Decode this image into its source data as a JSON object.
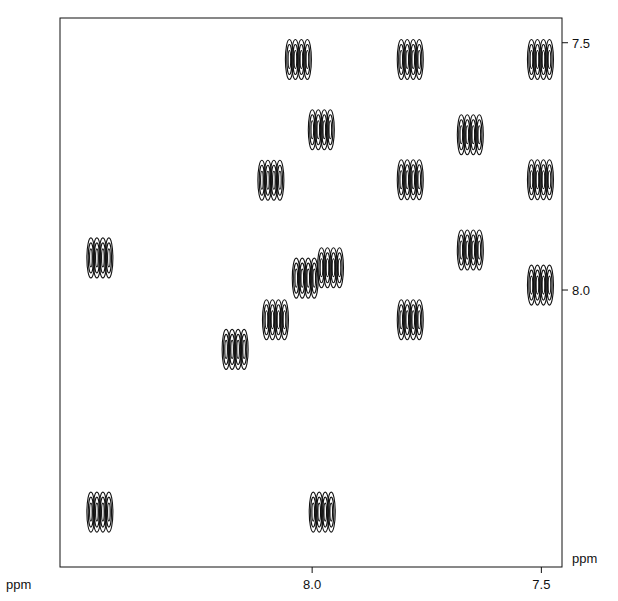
{
  "chart_data": {
    "type": "scatter",
    "marker": "contour",
    "color": "#111111",
    "xlabel": "ppm",
    "ylabel": "ppm",
    "xlim": [
      8.55,
      7.455
    ],
    "ylim": [
      8.56,
      7.45
    ],
    "xticks": [
      {
        "value": 8,
        "label": "8.0"
      },
      {
        "value": 7.5,
        "label": "7.5"
      }
    ],
    "yticks": [
      {
        "value": 7.5,
        "label": "7.5"
      },
      {
        "value": 8,
        "label": "8.0"
      }
    ],
    "x": [
      8.463,
      8.463,
      7.978,
      8.03,
      7.98,
      8.09,
      8.08,
      8.015,
      7.96,
      7.786,
      7.786,
      7.786,
      7.655,
      7.655,
      7.502,
      7.502,
      7.502,
      8.168
    ],
    "values": [
      7.935,
      8.449,
      8.449,
      7.534,
      7.676,
      7.778,
      8.06,
      7.976,
      7.955,
      7.534,
      7.777,
      8.06,
      7.686,
      7.919,
      7.534,
      7.777,
      7.99,
      8.12
    ],
    "grid": false
  }
}
